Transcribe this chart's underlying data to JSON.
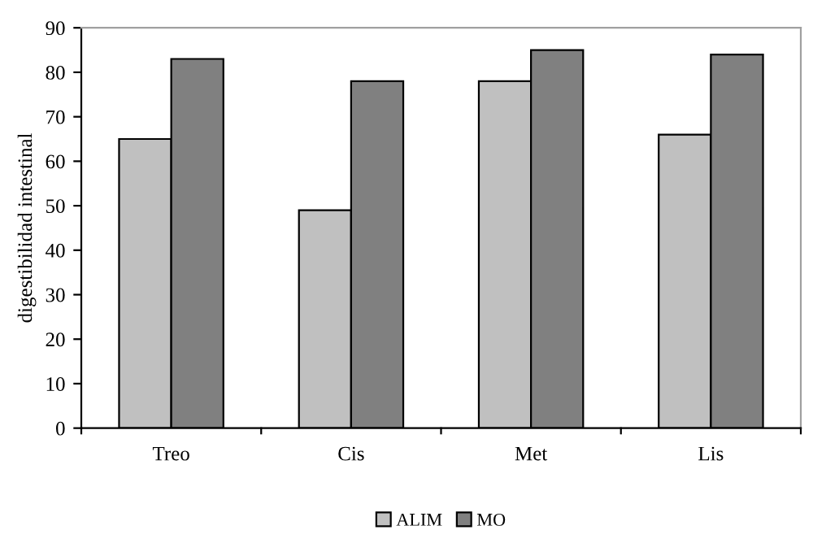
{
  "chart_data": {
    "type": "bar",
    "ylabel": "digestibilidad intestinal",
    "categories": [
      "Treo",
      "Cis",
      "Met",
      "Lis"
    ],
    "series": [
      {
        "name": "ALIM",
        "color": "#c0c0c0",
        "values": [
          65,
          49,
          78,
          66
        ]
      },
      {
        "name": "MO",
        "color": "#808080",
        "values": [
          83,
          78,
          85,
          84
        ]
      }
    ],
    "ylim": [
      0,
      90
    ],
    "yticks": [
      0,
      10,
      20,
      30,
      40,
      50,
      60,
      70,
      80,
      90
    ],
    "grid": false,
    "legend": "bottom"
  }
}
